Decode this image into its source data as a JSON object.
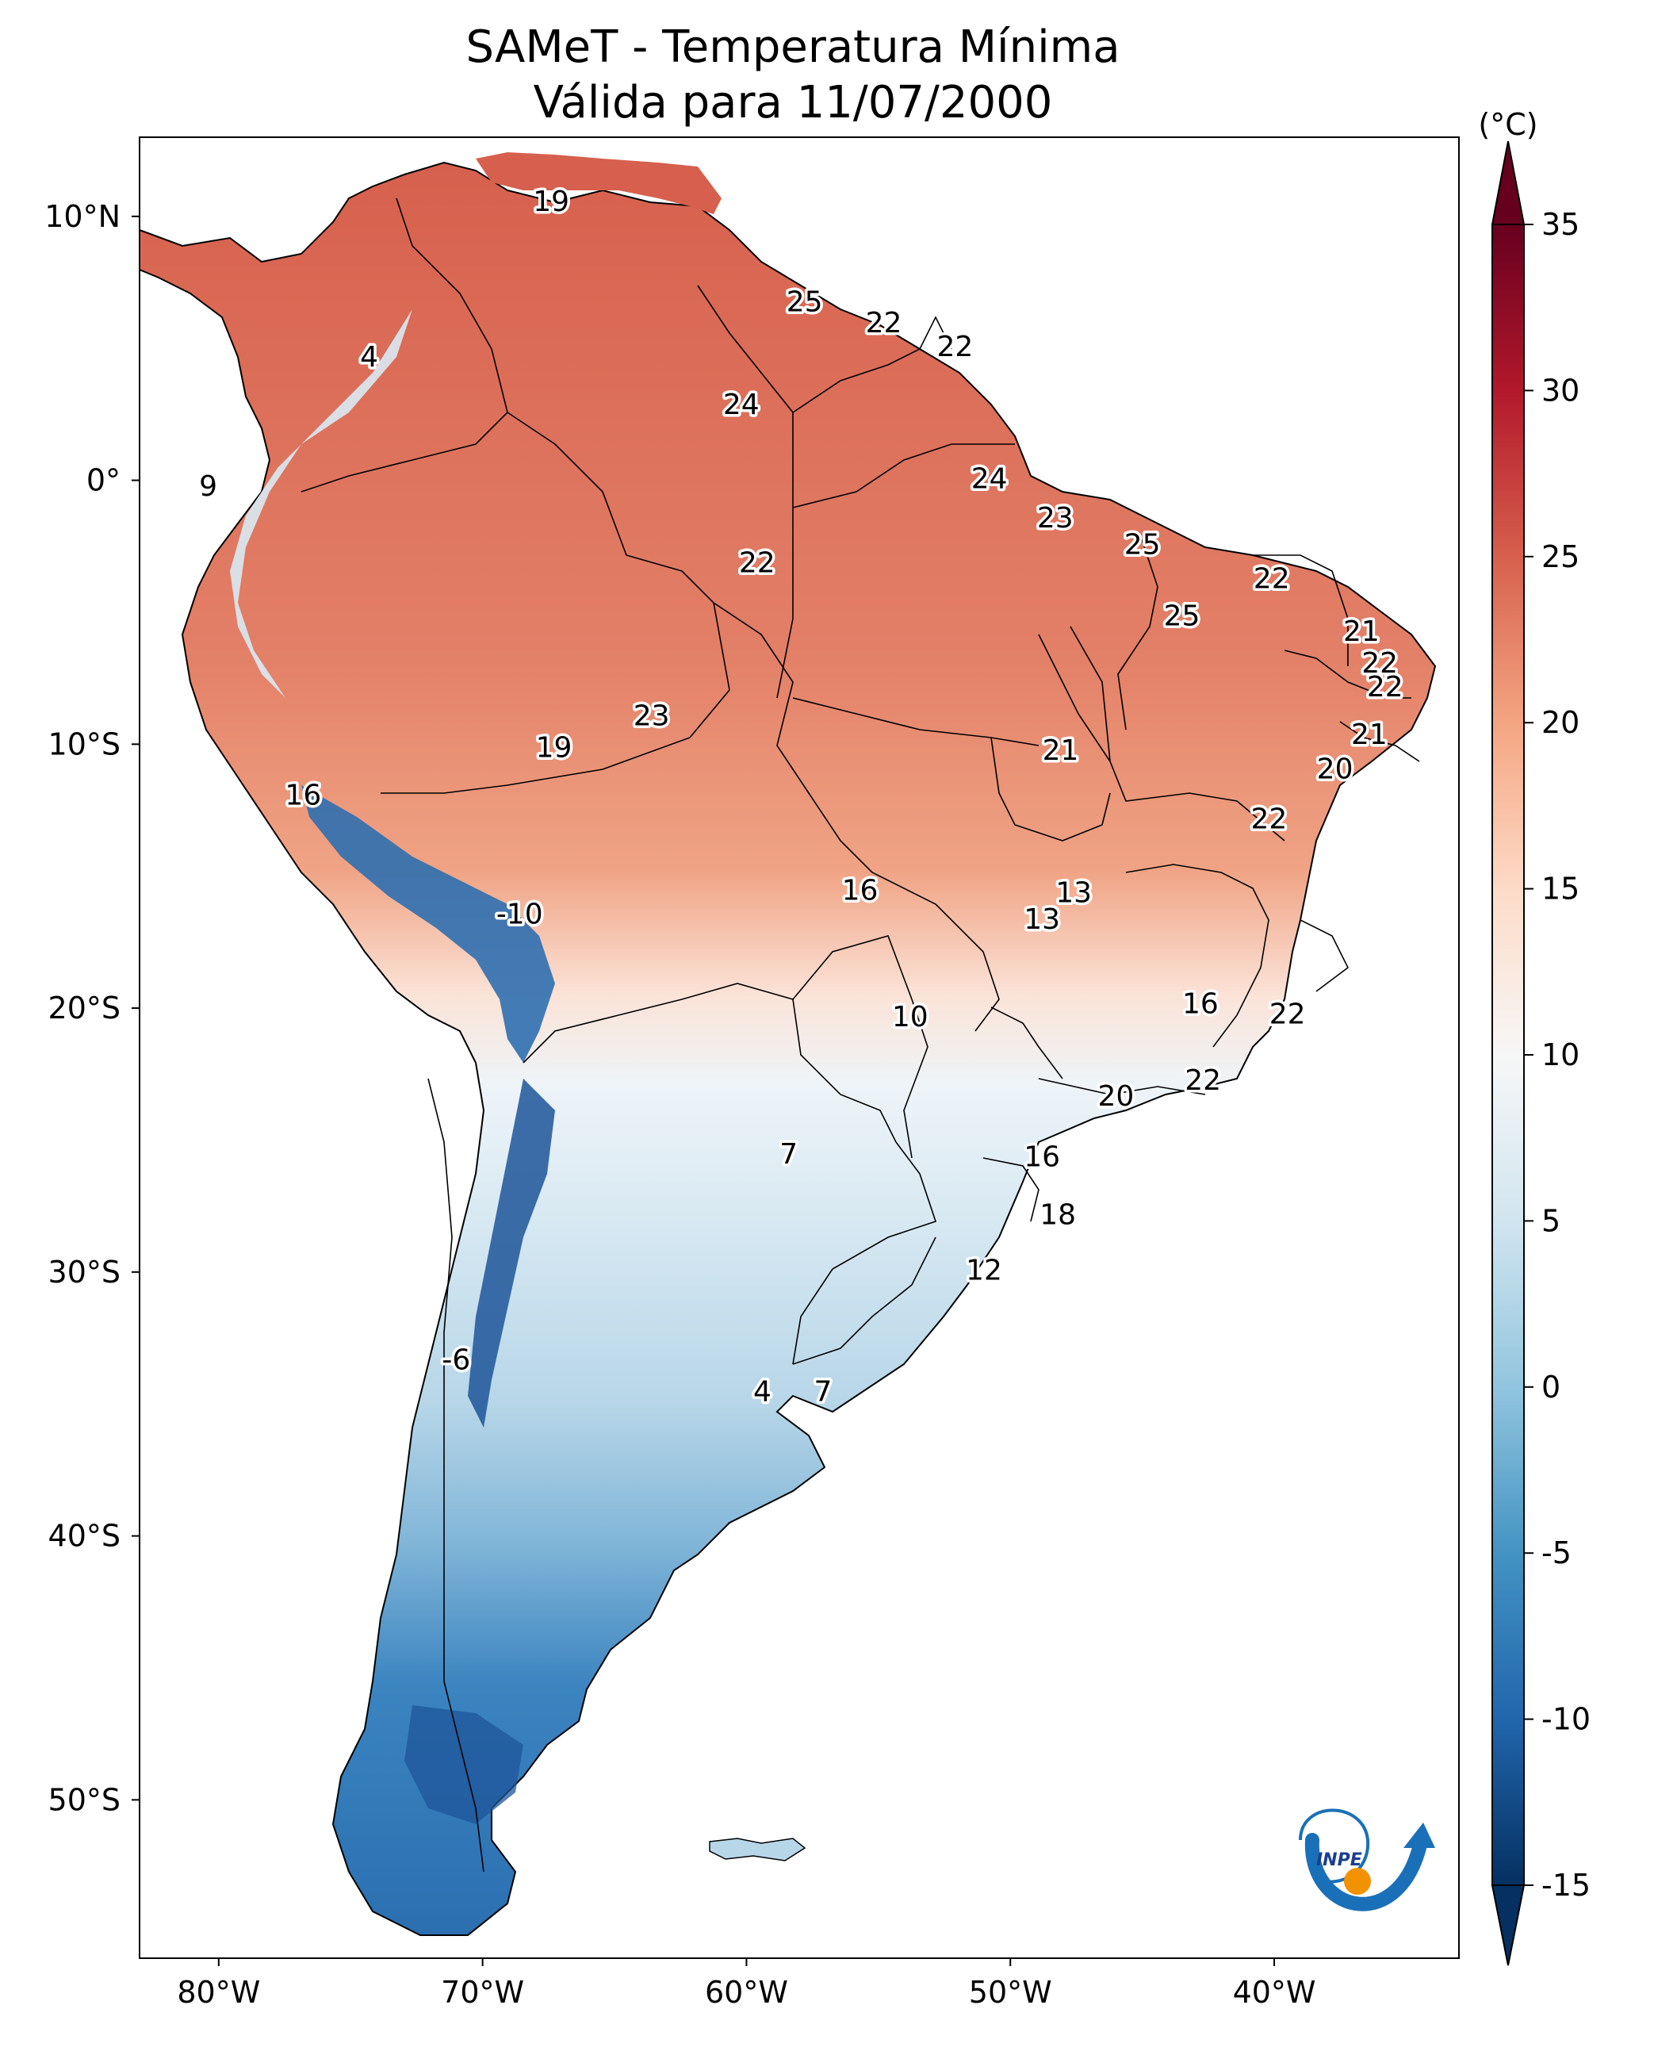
{
  "title": {
    "line1": "SAMeT - Temperatura Mínima",
    "line2": "Válida para 11/07/2000"
  },
  "map": {
    "lon_range": [
      -83,
      -33
    ],
    "lat_range": [
      -56,
      13
    ],
    "lon_ticks": [
      {
        "value": -80,
        "label": "80°W"
      },
      {
        "value": -70,
        "label": "70°W"
      },
      {
        "value": -60,
        "label": "60°W"
      },
      {
        "value": -50,
        "label": "50°W"
      },
      {
        "value": -40,
        "label": "40°W"
      }
    ],
    "lat_ticks": [
      {
        "value": 10,
        "label": "10°N"
      },
      {
        "value": 0,
        "label": "0°"
      },
      {
        "value": -10,
        "label": "10°S"
      },
      {
        "value": -20,
        "label": "20°S"
      },
      {
        "value": -30,
        "label": "30°S"
      },
      {
        "value": -40,
        "label": "40°S"
      },
      {
        "value": -50,
        "label": "50°S"
      }
    ],
    "value_labels": [
      {
        "lon": -67.4,
        "lat": 10.6,
        "text": "19"
      },
      {
        "lon": -74.3,
        "lat": 4.7,
        "text": "4"
      },
      {
        "lon": -80.4,
        "lat": -0.2,
        "text": "9"
      },
      {
        "lon": -57.8,
        "lat": 6.8,
        "text": "25"
      },
      {
        "lon": -54.8,
        "lat": 6.0,
        "text": "22"
      },
      {
        "lon": -52.1,
        "lat": 5.1,
        "text": "22"
      },
      {
        "lon": -60.2,
        "lat": 2.9,
        "text": "24"
      },
      {
        "lon": -50.8,
        "lat": 0.1,
        "text": "24"
      },
      {
        "lon": -48.3,
        "lat": -1.4,
        "text": "23"
      },
      {
        "lon": -59.6,
        "lat": -3.1,
        "text": "22"
      },
      {
        "lon": -45.0,
        "lat": -2.4,
        "text": "25"
      },
      {
        "lon": -43.5,
        "lat": -5.1,
        "text": "25"
      },
      {
        "lon": -40.1,
        "lat": -3.7,
        "text": "22"
      },
      {
        "lon": -36.7,
        "lat": -5.7,
        "text": "21"
      },
      {
        "lon": -36.0,
        "lat": -6.9,
        "text": "22"
      },
      {
        "lon": -35.8,
        "lat": -7.8,
        "text": "22"
      },
      {
        "lon": -36.4,
        "lat": -9.6,
        "text": "21"
      },
      {
        "lon": -37.7,
        "lat": -10.9,
        "text": "20"
      },
      {
        "lon": -40.2,
        "lat": -12.8,
        "text": "22"
      },
      {
        "lon": -63.6,
        "lat": -8.9,
        "text": "23"
      },
      {
        "lon": -67.3,
        "lat": -10.1,
        "text": "19"
      },
      {
        "lon": -48.1,
        "lat": -10.2,
        "text": "21"
      },
      {
        "lon": -76.8,
        "lat": -11.9,
        "text": "16"
      },
      {
        "lon": -55.7,
        "lat": -15.5,
        "text": "16"
      },
      {
        "lon": -47.6,
        "lat": -15.6,
        "text": "13"
      },
      {
        "lon": -48.8,
        "lat": -16.6,
        "text": "13"
      },
      {
        "lon": -68.6,
        "lat": -16.4,
        "text": "-10"
      },
      {
        "lon": -53.8,
        "lat": -20.3,
        "text": "10"
      },
      {
        "lon": -42.8,
        "lat": -19.8,
        "text": "16"
      },
      {
        "lon": -39.5,
        "lat": -20.2,
        "text": "22"
      },
      {
        "lon": -42.7,
        "lat": -22.7,
        "text": "22"
      },
      {
        "lon": -46.0,
        "lat": -23.3,
        "text": "20"
      },
      {
        "lon": -58.4,
        "lat": -25.5,
        "text": "7"
      },
      {
        "lon": -48.8,
        "lat": -25.6,
        "text": "16"
      },
      {
        "lon": -48.2,
        "lat": -27.8,
        "text": "18"
      },
      {
        "lon": -51.0,
        "lat": -29.9,
        "text": "12"
      },
      {
        "lon": -71.0,
        "lat": -33.3,
        "text": "-6"
      },
      {
        "lon": -59.4,
        "lat": -34.5,
        "text": "4"
      },
      {
        "lon": -57.1,
        "lat": -34.5,
        "text": "7"
      }
    ]
  },
  "colorbar": {
    "unit": "(°C)",
    "vmin": -15,
    "vmax": 35,
    "extend": "both",
    "ticks": [
      {
        "value": 35,
        "label": "35"
      },
      {
        "value": 30,
        "label": "30"
      },
      {
        "value": 25,
        "label": "25"
      },
      {
        "value": 20,
        "label": "20"
      },
      {
        "value": 15,
        "label": "15"
      },
      {
        "value": 10,
        "label": "10"
      },
      {
        "value": 5,
        "label": "5"
      },
      {
        "value": 0,
        "label": "0"
      },
      {
        "value": -5,
        "label": "-5"
      },
      {
        "value": -10,
        "label": "-10"
      },
      {
        "value": -15,
        "label": "-15"
      }
    ],
    "colormap": [
      "#053061",
      "#2166ac",
      "#4393c3",
      "#92c5de",
      "#d1e5f0",
      "#f7f7f7",
      "#fddbc7",
      "#f4a582",
      "#d6604d",
      "#b2182b",
      "#67001f"
    ]
  },
  "logo": {
    "text": "INPE",
    "color_primary": "#1a70b8",
    "color_accent": "#f39200"
  }
}
